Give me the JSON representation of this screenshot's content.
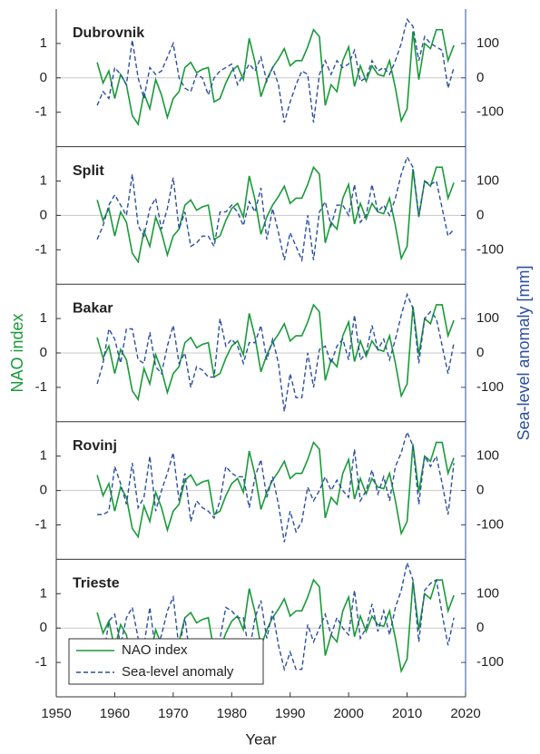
{
  "chart_data": [
    {
      "type": "line",
      "title": "Dubrovnik",
      "xlim": [
        1950,
        2020
      ],
      "ylim": [
        -2,
        2
      ],
      "yticks": [
        -1,
        0,
        1
      ],
      "y2lim": [
        -200,
        200
      ],
      "y2ticks": [
        -100,
        0,
        100
      ],
      "x": [
        1957,
        1958,
        1959,
        1960,
        1961,
        1962,
        1963,
        1964,
        1965,
        1966,
        1967,
        1968,
        1969,
        1970,
        1971,
        1972,
        1973,
        1974,
        1975,
        1976,
        1977,
        1978,
        1979,
        1980,
        1981,
        1982,
        1983,
        1984,
        1985,
        1986,
        1987,
        1988,
        1989,
        1990,
        1991,
        1992,
        1993,
        1994,
        1995,
        1996,
        1997,
        1998,
        1999,
        2000,
        2001,
        2002,
        2003,
        2004,
        2005,
        2006,
        2007,
        2008,
        2009,
        2010,
        2011,
        2012,
        2013,
        2014,
        2015,
        2016,
        2017,
        2018
      ],
      "series": [
        {
          "name": "NAO index",
          "color": "#1a9a3a",
          "linestyle": "solid",
          "values": [
            0.45,
            -0.15,
            0.2,
            -0.6,
            0.1,
            -0.2,
            -1.1,
            -1.35,
            -0.45,
            -0.9,
            -0.05,
            -0.5,
            -1.15,
            -0.6,
            -0.4,
            0.3,
            0.45,
            0.15,
            0.25,
            0.3,
            -0.7,
            -0.6,
            -0.15,
            0.2,
            0.35,
            -0.05,
            1.15,
            0.45,
            -0.55,
            -0.05,
            0.3,
            0.55,
            0.85,
            0.35,
            0.5,
            0.5,
            0.9,
            1.4,
            1.2,
            -0.8,
            -0.2,
            -0.4,
            0.5,
            0.9,
            -0.25,
            0.35,
            -0.1,
            0.35,
            0.1,
            0.05,
            0.5,
            -0.3,
            -1.25,
            -0.9,
            1.35,
            -0.05,
            1.0,
            0.85,
            1.4,
            1.4,
            0.5,
            0.95
          ]
        },
        {
          "name": "Sea-level anomaly",
          "color": "#2c4fa0",
          "linestyle": "dashed",
          "axis": "y2",
          "values": [
            -80,
            -40,
            -60,
            30,
            10,
            -20,
            110,
            0,
            -60,
            30,
            10,
            20,
            60,
            100,
            0,
            -30,
            -40,
            10,
            0,
            -50,
            0,
            20,
            30,
            40,
            -20,
            10,
            40,
            20,
            60,
            -10,
            30,
            -20,
            -130,
            -70,
            -20,
            20,
            10,
            -130,
            10,
            50,
            10,
            50,
            30,
            40,
            80,
            -10,
            0,
            50,
            20,
            30,
            10,
            50,
            100,
            170,
            150,
            50,
            120,
            100,
            90,
            80,
            -30,
            30
          ]
        }
      ]
    },
    {
      "type": "line",
      "title": "Split",
      "xlim": [
        1950,
        2020
      ],
      "ylim": [
        -2,
        2
      ],
      "yticks": [
        -1,
        0,
        1
      ],
      "y2lim": [
        -200,
        200
      ],
      "y2ticks": [
        -100,
        0,
        100
      ],
      "x": [
        1957,
        1958,
        1959,
        1960,
        1961,
        1962,
        1963,
        1964,
        1965,
        1966,
        1967,
        1968,
        1969,
        1970,
        1971,
        1972,
        1973,
        1974,
        1975,
        1976,
        1977,
        1978,
        1979,
        1980,
        1981,
        1982,
        1983,
        1984,
        1985,
        1986,
        1987,
        1988,
        1989,
        1990,
        1991,
        1992,
        1993,
        1994,
        1995,
        1996,
        1997,
        1998,
        1999,
        2000,
        2001,
        2002,
        2003,
        2004,
        2005,
        2006,
        2007,
        2008,
        2009,
        2010,
        2011,
        2012,
        2013,
        2014,
        2015,
        2016,
        2017,
        2018
      ],
      "series": [
        {
          "name": "NAO index",
          "color": "#1a9a3a",
          "linestyle": "solid",
          "values": [
            0.45,
            -0.15,
            0.2,
            -0.6,
            0.1,
            -0.2,
            -1.1,
            -1.35,
            -0.45,
            -0.9,
            -0.05,
            -0.5,
            -1.15,
            -0.6,
            -0.4,
            0.3,
            0.45,
            0.15,
            0.25,
            0.3,
            -0.7,
            -0.6,
            -0.15,
            0.2,
            0.35,
            -0.05,
            1.15,
            0.45,
            -0.55,
            -0.05,
            0.3,
            0.55,
            0.85,
            0.35,
            0.5,
            0.5,
            0.9,
            1.4,
            1.2,
            -0.8,
            -0.2,
            -0.4,
            0.5,
            0.9,
            -0.25,
            0.35,
            -0.1,
            0.35,
            0.1,
            0.05,
            0.5,
            -0.3,
            -1.25,
            -0.9,
            1.35,
            -0.05,
            1.0,
            0.85,
            1.4,
            1.4,
            0.5,
            0.95
          ]
        },
        {
          "name": "Sea-level anomaly",
          "color": "#2c4fa0",
          "linestyle": "dashed",
          "axis": "y2",
          "values": [
            -70,
            -30,
            30,
            60,
            30,
            0,
            120,
            -30,
            -60,
            20,
            50,
            -40,
            20,
            110,
            -40,
            10,
            -90,
            -80,
            -60,
            -60,
            -90,
            10,
            10,
            30,
            10,
            -30,
            40,
            10,
            80,
            -70,
            20,
            -50,
            -130,
            -50,
            -90,
            -130,
            0,
            -130,
            10,
            40,
            -30,
            30,
            30,
            0,
            90,
            -20,
            0,
            90,
            10,
            30,
            0,
            50,
            120,
            170,
            140,
            0,
            100,
            90,
            100,
            20,
            -60,
            -40
          ]
        }
      ]
    },
    {
      "type": "line",
      "title": "Bakar",
      "xlim": [
        1950,
        2020
      ],
      "ylim": [
        -2,
        2
      ],
      "yticks": [
        -1,
        0,
        1
      ],
      "y2lim": [
        -200,
        200
      ],
      "y2ticks": [
        -100,
        0,
        100
      ],
      "ylabel": "NAO index",
      "y2label": "Sea-level anomaly [mm]",
      "x": [
        1957,
        1958,
        1959,
        1960,
        1961,
        1962,
        1963,
        1964,
        1965,
        1966,
        1967,
        1968,
        1969,
        1970,
        1971,
        1972,
        1973,
        1974,
        1975,
        1976,
        1977,
        1978,
        1979,
        1980,
        1981,
        1982,
        1983,
        1984,
        1985,
        1986,
        1987,
        1988,
        1989,
        1990,
        1991,
        1992,
        1993,
        1994,
        1995,
        1996,
        1997,
        1998,
        1999,
        2000,
        2001,
        2002,
        2003,
        2004,
        2005,
        2006,
        2007,
        2008,
        2009,
        2010,
        2011,
        2012,
        2013,
        2014,
        2015,
        2016,
        2017,
        2018
      ],
      "series": [
        {
          "name": "NAO index",
          "color": "#1a9a3a",
          "linestyle": "solid",
          "values": [
            0.45,
            -0.15,
            0.2,
            -0.6,
            0.1,
            -0.2,
            -1.1,
            -1.35,
            -0.45,
            -0.9,
            -0.05,
            -0.5,
            -1.15,
            -0.6,
            -0.4,
            0.3,
            0.45,
            0.15,
            0.25,
            0.3,
            -0.7,
            -0.6,
            -0.15,
            0.2,
            0.35,
            -0.05,
            1.15,
            0.45,
            -0.55,
            -0.05,
            0.3,
            0.55,
            0.85,
            0.35,
            0.5,
            0.5,
            0.9,
            1.4,
            1.2,
            -0.8,
            -0.2,
            -0.4,
            0.5,
            0.9,
            -0.25,
            0.35,
            -0.1,
            0.35,
            0.1,
            0.05,
            0.5,
            -0.3,
            -1.25,
            -0.9,
            1.35,
            -0.05,
            1.0,
            0.85,
            1.4,
            1.4,
            0.5,
            0.95
          ]
        },
        {
          "name": "Sea-level anomaly",
          "color": "#2c4fa0",
          "linestyle": "dashed",
          "axis": "y2",
          "values": [
            -90,
            -30,
            70,
            40,
            -30,
            70,
            70,
            -20,
            -30,
            60,
            -40,
            -60,
            20,
            80,
            -30,
            0,
            -100,
            -40,
            -50,
            -70,
            -70,
            100,
            20,
            40,
            20,
            -30,
            30,
            30,
            80,
            -20,
            40,
            -30,
            -170,
            -60,
            -130,
            -130,
            0,
            -100,
            10,
            20,
            -30,
            20,
            40,
            -20,
            110,
            -20,
            0,
            80,
            10,
            40,
            -20,
            40,
            110,
            170,
            130,
            -30,
            100,
            120,
            100,
            20,
            -60,
            30
          ]
        }
      ]
    },
    {
      "type": "line",
      "title": "Rovinj",
      "xlim": [
        1950,
        2020
      ],
      "ylim": [
        -2,
        2
      ],
      "yticks": [
        -1,
        0,
        1
      ],
      "y2lim": [
        -200,
        200
      ],
      "y2ticks": [
        -100,
        0,
        100
      ],
      "x": [
        1957,
        1958,
        1959,
        1960,
        1961,
        1962,
        1963,
        1964,
        1965,
        1966,
        1967,
        1968,
        1969,
        1970,
        1971,
        1972,
        1973,
        1974,
        1975,
        1976,
        1977,
        1978,
        1979,
        1980,
        1981,
        1982,
        1983,
        1984,
        1985,
        1986,
        1987,
        1988,
        1989,
        1990,
        1991,
        1992,
        1993,
        1994,
        1995,
        1996,
        1997,
        1998,
        1999,
        2000,
        2001,
        2002,
        2003,
        2004,
        2005,
        2006,
        2007,
        2008,
        2009,
        2010,
        2011,
        2012,
        2013,
        2014,
        2015,
        2016,
        2017,
        2018
      ],
      "series": [
        {
          "name": "NAO index",
          "color": "#1a9a3a",
          "linestyle": "solid",
          "values": [
            0.45,
            -0.15,
            0.2,
            -0.6,
            0.1,
            -0.2,
            -1.1,
            -1.35,
            -0.45,
            -0.9,
            -0.05,
            -0.5,
            -1.15,
            -0.6,
            -0.4,
            0.3,
            0.45,
            0.15,
            0.25,
            0.3,
            -0.7,
            -0.6,
            -0.15,
            0.2,
            0.35,
            -0.05,
            1.15,
            0.45,
            -0.55,
            -0.05,
            0.3,
            0.55,
            0.85,
            0.35,
            0.5,
            0.5,
            0.9,
            1.4,
            1.2,
            -0.8,
            -0.2,
            -0.4,
            0.5,
            0.9,
            -0.25,
            0.35,
            -0.1,
            0.35,
            0.1,
            0.05,
            0.5,
            -0.3,
            -1.25,
            -0.9,
            1.35,
            -0.05,
            1.0,
            0.85,
            1.4,
            1.4,
            0.5,
            0.95
          ]
        },
        {
          "name": "Sea-level anomaly",
          "color": "#2c4fa0",
          "linestyle": "dashed",
          "axis": "y2",
          "values": [
            -70,
            -70,
            -60,
            70,
            20,
            -40,
            80,
            -50,
            -20,
            100,
            -60,
            0,
            50,
            110,
            -30,
            50,
            -90,
            -30,
            -50,
            -60,
            -80,
            -30,
            70,
            50,
            40,
            40,
            -50,
            40,
            90,
            -20,
            40,
            -40,
            -150,
            -60,
            -120,
            -90,
            10,
            -30,
            0,
            40,
            0,
            30,
            0,
            -20,
            120,
            -30,
            0,
            60,
            -10,
            40,
            -30,
            70,
            110,
            170,
            130,
            -40,
            100,
            70,
            100,
            20,
            -70,
            80
          ]
        }
      ]
    },
    {
      "type": "line",
      "title": "Trieste",
      "xlim": [
        1950,
        2020
      ],
      "ylim": [
        -2,
        2
      ],
      "yticks": [
        -1,
        0,
        1
      ],
      "y2lim": [
        -200,
        200
      ],
      "y2ticks": [
        -100,
        0,
        100
      ],
      "xticks": [
        1950,
        1960,
        1970,
        1980,
        1990,
        2000,
        2010,
        2020
      ],
      "xlabel": "Year",
      "legend": "lower left",
      "x": [
        1957,
        1958,
        1959,
        1960,
        1961,
        1962,
        1963,
        1964,
        1965,
        1966,
        1967,
        1968,
        1969,
        1970,
        1971,
        1972,
        1973,
        1974,
        1975,
        1976,
        1977,
        1978,
        1979,
        1980,
        1981,
        1982,
        1983,
        1984,
        1985,
        1986,
        1987,
        1988,
        1989,
        1990,
        1991,
        1992,
        1993,
        1994,
        1995,
        1996,
        1997,
        1998,
        1999,
        2000,
        2001,
        2002,
        2003,
        2004,
        2005,
        2006,
        2007,
        2008,
        2009,
        2010,
        2011,
        2012,
        2013,
        2014,
        2015,
        2016,
        2017,
        2018
      ],
      "series": [
        {
          "name": "NAO index",
          "color": "#1a9a3a",
          "linestyle": "solid",
          "values": [
            0.45,
            -0.15,
            0.2,
            -0.6,
            0.1,
            -0.2,
            -1.1,
            -1.35,
            -0.45,
            -0.9,
            -0.05,
            -0.5,
            -1.15,
            -0.6,
            -0.4,
            0.3,
            0.45,
            0.15,
            0.25,
            0.3,
            -0.7,
            -0.6,
            -0.15,
            0.2,
            0.35,
            -0.05,
            1.15,
            0.45,
            -0.55,
            -0.05,
            0.3,
            0.55,
            0.85,
            0.35,
            0.5,
            0.5,
            0.9,
            1.4,
            1.2,
            -0.8,
            -0.2,
            -0.4,
            0.5,
            0.9,
            -0.25,
            0.35,
            -0.1,
            0.35,
            0.1,
            0.05,
            0.5,
            -0.3,
            -1.25,
            -0.9,
            1.35,
            -0.05,
            1.0,
            0.85,
            1.4,
            1.4,
            0.5,
            0.95
          ]
        },
        {
          "name": "Sea-level anomaly",
          "color": "#2c4fa0",
          "linestyle": "dashed",
          "axis": "y2",
          "values": [
            -60,
            -90,
            20,
            40,
            -50,
            30,
            60,
            -30,
            -50,
            60,
            -70,
            -20,
            50,
            90,
            -60,
            30,
            -100,
            -40,
            -40,
            -60,
            -70,
            -30,
            60,
            50,
            30,
            30,
            -70,
            30,
            80,
            -30,
            50,
            -50,
            -120,
            -70,
            -120,
            -120,
            10,
            -40,
            0,
            40,
            -20,
            30,
            0,
            -20,
            110,
            -30,
            0,
            70,
            -10,
            50,
            -20,
            60,
            110,
            190,
            140,
            -40,
            110,
            130,
            140,
            40,
            -50,
            30
          ]
        }
      ]
    }
  ]
}
